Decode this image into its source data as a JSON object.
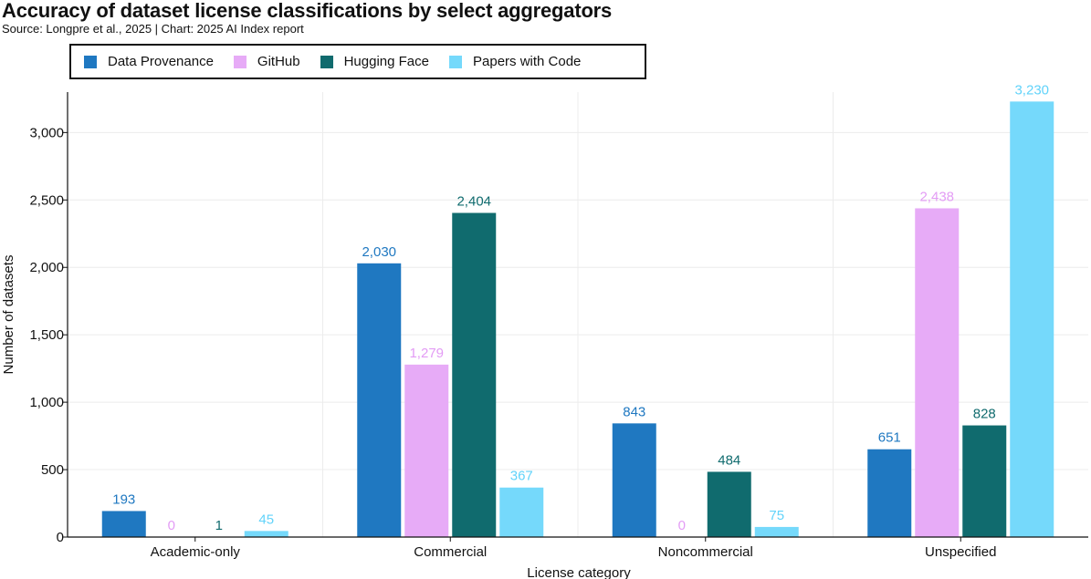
{
  "header": {
    "title": "Accuracy of dataset license classifications by select aggregators",
    "subtitle": "Source: Longpre et al., 2025 | Chart: 2025 AI Index report"
  },
  "chart_data": {
    "type": "bar",
    "title": "Accuracy of dataset license classifications by select aggregators",
    "xlabel": "License category",
    "ylabel": "Number of datasets",
    "ylim": [
      0,
      3300
    ],
    "yticks": [
      0,
      500,
      1000,
      1500,
      2000,
      2500,
      3000
    ],
    "ytick_labels": [
      "0",
      "500",
      "1,000",
      "1,500",
      "2,000",
      "2,500",
      "3,000"
    ],
    "grid": true,
    "legend_position": "top-left",
    "categories": [
      "Academic-only",
      "Commercial",
      "Noncommercial",
      "Unspecified"
    ],
    "series": [
      {
        "name": "Data Provenance",
        "color": "#1f78c1",
        "label_color": "#1f78c1",
        "values": [
          193,
          2030,
          843,
          651
        ],
        "labels": [
          "193",
          "2,030",
          "843",
          "651"
        ]
      },
      {
        "name": "GitHub",
        "color": "#e7abf7",
        "label_color": "#e39cf5",
        "values": [
          0,
          1279,
          0,
          2438
        ],
        "labels": [
          "0",
          "1,279",
          "0",
          "2,438"
        ]
      },
      {
        "name": "Hugging Face",
        "color": "#106b6e",
        "label_color": "#106b6e",
        "values": [
          1,
          2404,
          484,
          828
        ],
        "labels": [
          "1",
          "2,404",
          "484",
          "828"
        ]
      },
      {
        "name": "Papers with Code",
        "color": "#75d9fb",
        "label_color": "#62d3fa",
        "values": [
          45,
          367,
          75,
          3230
        ],
        "labels": [
          "45",
          "367",
          "75",
          "3,230"
        ]
      }
    ]
  }
}
